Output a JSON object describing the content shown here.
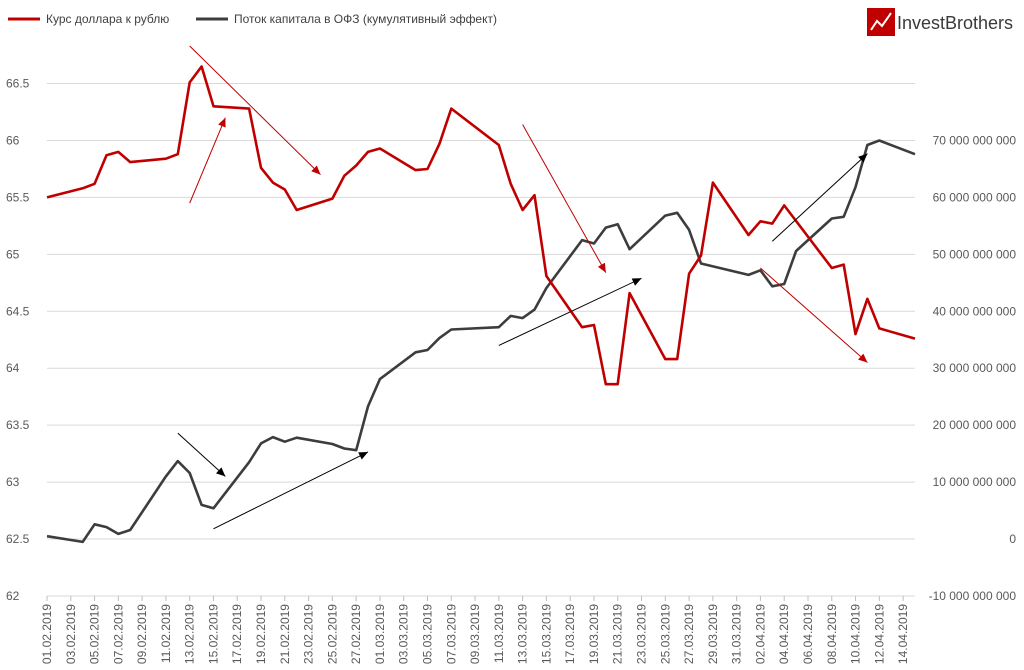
{
  "logo": {
    "text": "InvestBrothers"
  },
  "chart_data": {
    "type": "line",
    "legend_position": "top-left",
    "grid": "horizontal",
    "series": [
      {
        "name": "Курс доллара к рублю",
        "axis": "left",
        "color": "#c00000",
        "points": [
          [
            "01.02.2019",
            65.5
          ],
          [
            "04.02.2019",
            65.58
          ],
          [
            "05.02.2019",
            65.62
          ],
          [
            "06.02.2019",
            65.87
          ],
          [
            "07.02.2019",
            65.9
          ],
          [
            "08.02.2019",
            65.81
          ],
          [
            "11.02.2019",
            65.84
          ],
          [
            "12.02.2019",
            65.88
          ],
          [
            "13.02.2019",
            66.51
          ],
          [
            "14.02.2019",
            66.65
          ],
          [
            "15.02.2019",
            66.3
          ],
          [
            "18.02.2019",
            66.28
          ],
          [
            "19.02.2019",
            65.76
          ],
          [
            "20.02.2019",
            65.63
          ],
          [
            "21.02.2019",
            65.57
          ],
          [
            "22.02.2019",
            65.39
          ],
          [
            "25.02.2019",
            65.49
          ],
          [
            "26.02.2019",
            65.69
          ],
          [
            "27.02.2019",
            65.78
          ],
          [
            "28.02.2019",
            65.9
          ],
          [
            "01.03.2019",
            65.93
          ],
          [
            "04.03.2019",
            65.74
          ],
          [
            "05.03.2019",
            65.75
          ],
          [
            "06.03.2019",
            65.97
          ],
          [
            "07.03.2019",
            66.28
          ],
          [
            "11.03.2019",
            65.96
          ],
          [
            "12.03.2019",
            65.62
          ],
          [
            "13.03.2019",
            65.39
          ],
          [
            "14.03.2019",
            65.52
          ],
          [
            "15.03.2019",
            64.81
          ],
          [
            "18.03.2019",
            64.36
          ],
          [
            "19.03.2019",
            64.38
          ],
          [
            "20.03.2019",
            63.86
          ],
          [
            "21.03.2019",
            63.86
          ],
          [
            "22.03.2019",
            64.66
          ],
          [
            "25.03.2019",
            64.08
          ],
          [
            "26.03.2019",
            64.08
          ],
          [
            "27.03.2019",
            64.83
          ],
          [
            "28.03.2019",
            64.99
          ],
          [
            "29.03.2019",
            65.63
          ],
          [
            "01.04.2019",
            65.17
          ],
          [
            "02.04.2019",
            65.29
          ],
          [
            "03.04.2019",
            65.27
          ],
          [
            "04.04.2019",
            65.43
          ],
          [
            "08.04.2019",
            64.88
          ],
          [
            "09.04.2019",
            64.91
          ],
          [
            "10.04.2019",
            64.3
          ],
          [
            "11.04.2019",
            64.61
          ],
          [
            "12.04.2019",
            64.35
          ],
          [
            "15.04.2019",
            64.26
          ]
        ]
      },
      {
        "name": "Поток капитала в ОФЗ (кумулятивный эффект)",
        "axis": "right",
        "color": "#3d3d3d",
        "points": [
          [
            "01.02.2019",
            500000000.0
          ],
          [
            "04.02.2019",
            -500000000.0
          ],
          [
            "05.02.2019",
            2600000000.0
          ],
          [
            "06.02.2019",
            2100000000.0
          ],
          [
            "07.02.2019",
            900000000.0
          ],
          [
            "08.02.2019",
            1600000000.0
          ],
          [
            "11.02.2019",
            11000000000.0
          ],
          [
            "12.02.2019",
            13700000000.0
          ],
          [
            "13.02.2019",
            11600000000.0
          ],
          [
            "14.02.2019",
            6000000000.0
          ],
          [
            "15.02.2019",
            5400000000.0
          ],
          [
            "18.02.2019",
            13500000000.0
          ],
          [
            "19.02.2019",
            16800000000.0
          ],
          [
            "20.02.2019",
            17900000000.0
          ],
          [
            "21.02.2019",
            17100000000.0
          ],
          [
            "22.02.2019",
            17800000000.0
          ],
          [
            "25.02.2019",
            16700000000.0
          ],
          [
            "26.02.2019",
            15900000000.0
          ],
          [
            "27.02.2019",
            15600000000.0
          ],
          [
            "28.02.2019",
            23300000000.0
          ],
          [
            "01.03.2019",
            28100000000.0
          ],
          [
            "04.03.2019",
            32800000000.0
          ],
          [
            "05.03.2019",
            33200000000.0
          ],
          [
            "06.03.2019",
            35300000000.0
          ],
          [
            "07.03.2019",
            36800000000.0
          ],
          [
            "11.03.2019",
            37200000000.0
          ],
          [
            "12.03.2019",
            39200000000.0
          ],
          [
            "13.03.2019",
            38800000000.0
          ],
          [
            "14.03.2019",
            40300000000.0
          ],
          [
            "15.03.2019",
            44100000000.0
          ],
          [
            "18.03.2019",
            52500000000.0
          ],
          [
            "19.03.2019",
            51900000000.0
          ],
          [
            "20.03.2019",
            54700000000.0
          ],
          [
            "21.03.2019",
            55300000000.0
          ],
          [
            "22.03.2019",
            50900000000.0
          ],
          [
            "25.03.2019",
            56800000000.0
          ],
          [
            "26.03.2019",
            57300000000.0
          ],
          [
            "27.03.2019",
            54300000000.0
          ],
          [
            "28.03.2019",
            48400000000.0
          ],
          [
            "01.04.2019",
            46400000000.0
          ],
          [
            "02.04.2019",
            47200000000.0
          ],
          [
            "03.04.2019",
            44400000000.0
          ],
          [
            "04.04.2019",
            44800000000.0
          ],
          [
            "05.04.2019",
            50600000000.0
          ],
          [
            "08.04.2019",
            56300000000.0
          ],
          [
            "09.04.2019",
            56600000000.0
          ],
          [
            "10.04.2019",
            61800000000.0
          ],
          [
            "11.04.2019",
            69200000000.0
          ],
          [
            "12.04.2019",
            70000000000.0
          ],
          [
            "15.04.2019",
            67600000000.0
          ]
        ]
      }
    ],
    "x_tick_labels": [
      "01.02.2019",
      "03.02.2019",
      "05.02.2019",
      "07.02.2019",
      "09.02.2019",
      "11.02.2019",
      "13.02.2019",
      "15.02.2019",
      "17.02.2019",
      "19.02.2019",
      "21.02.2019",
      "23.02.2019",
      "25.02.2019",
      "27.02.2019",
      "01.03.2019",
      "03.03.2019",
      "05.03.2019",
      "07.03.2019",
      "09.03.2019",
      "11.03.2019",
      "13.03.2019",
      "15.03.2019",
      "17.03.2019",
      "19.03.2019",
      "21.03.2019",
      "23.03.2019",
      "25.03.2019",
      "27.03.2019",
      "29.03.2019",
      "31.03.2019",
      "02.04.2019",
      "04.04.2019",
      "06.04.2019",
      "08.04.2019",
      "10.04.2019",
      "12.04.2019",
      "14.04.2019"
    ],
    "x_range": [
      "01.02.2019",
      "15.04.2019"
    ],
    "y_left": {
      "range": [
        62,
        66.9
      ],
      "ticks": [
        62,
        62.5,
        63,
        63.5,
        64,
        64.5,
        65,
        65.5,
        66,
        66.5
      ],
      "labels": [
        "62",
        "62.5",
        "63",
        "63.5",
        "64",
        "64.5",
        "65",
        "65.5",
        "66",
        "66.5"
      ]
    },
    "y_right": {
      "ticks": [
        -10000000000.0,
        0,
        10000000000.0,
        20000000000.0,
        30000000000.0,
        40000000000.0,
        50000000000.0,
        60000000000.0,
        70000000000.0
      ],
      "labels": [
        "-10 000 000 000",
        "0",
        "10 000 000 000",
        "20 000 000 000",
        "30 000 000 000",
        "40 000 000 000",
        "50 000 000 000",
        "60 000 000 000",
        "70 000 000 000"
      ]
    },
    "annotations": [
      {
        "color": "#c00000",
        "from": [
          "13.02.2019",
          65.45
        ],
        "to": [
          "16.02.2019",
          66.2
        ]
      },
      {
        "color": "#c00000",
        "from": [
          "13.02.2019",
          66.83
        ],
        "to": [
          "24.02.2019",
          65.7
        ]
      },
      {
        "color": "#c00000",
        "from": [
          "13.03.2019",
          66.14
        ],
        "to": [
          "20.03.2019",
          64.84
        ]
      },
      {
        "color": "#c00000",
        "from": [
          "02.04.2019",
          64.88
        ],
        "to": [
          "11.04.2019",
          64.05
        ]
      },
      {
        "color": "#000000",
        "from": [
          "12.02.2019",
          18600000000.0
        ],
        "to": [
          "16.02.2019",
          11000000000.0
        ]
      },
      {
        "color": "#000000",
        "from": [
          "15.02.2019",
          1800000000.0
        ],
        "to": [
          "28.02.2019",
          15300000000.0
        ]
      },
      {
        "color": "#000000",
        "from": [
          "11.03.2019",
          34000000000.0
        ],
        "to": [
          "23.03.2019",
          45800000000.0
        ]
      },
      {
        "color": "#000000",
        "from": [
          "03.04.2019",
          52300000000.0
        ],
        "to": [
          "11.04.2019",
          67700000000.0
        ]
      }
    ]
  }
}
